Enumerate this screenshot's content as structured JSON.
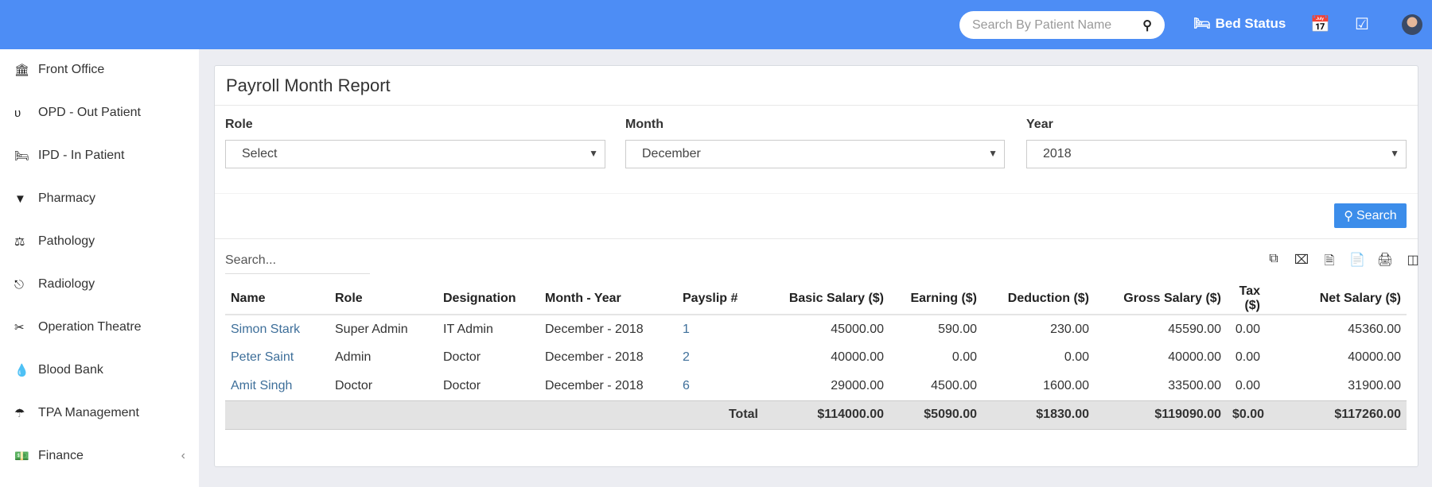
{
  "header": {
    "search_placeholder": "Search By Patient Name",
    "bed_status": "Bed Status"
  },
  "sidebar": {
    "items": [
      {
        "label": "Front Office",
        "icon": "building-icon"
      },
      {
        "label": "OPD - Out Patient",
        "icon": "stethoscope-icon"
      },
      {
        "label": "IPD - In Patient",
        "icon": "bed-icon"
      },
      {
        "label": "Pharmacy",
        "icon": "mortar-pestle-icon"
      },
      {
        "label": "Pathology",
        "icon": "flask-icon"
      },
      {
        "label": "Radiology",
        "icon": "microscope-icon"
      },
      {
        "label": "Operation Theatre",
        "icon": "scissors-icon"
      },
      {
        "label": "Blood Bank",
        "icon": "tint-icon"
      },
      {
        "label": "TPA Management",
        "icon": "umbrella-icon"
      },
      {
        "label": "Finance",
        "icon": "money-icon"
      }
    ]
  },
  "panel": {
    "title": "Payroll Month Report",
    "filters": {
      "role_label": "Role",
      "role_value": "Select",
      "month_label": "Month",
      "month_value": "December",
      "year_label": "Year",
      "year_value": "2018"
    },
    "search_button": "Search",
    "table_search_placeholder": "Search..."
  },
  "table": {
    "headers": [
      "Name",
      "Role",
      "Designation",
      "Month - Year",
      "Payslip #",
      "Basic Salary ($)",
      "Earning ($)",
      "Deduction ($)",
      "Gross Salary ($)",
      "Tax ($)",
      "Net Salary ($)"
    ],
    "rows": [
      [
        "Simon Stark",
        "Super Admin",
        "IT Admin",
        "December - 2018",
        "1",
        "45000.00",
        "590.00",
        "230.00",
        "45590.00",
        "0.00",
        "45360.00"
      ],
      [
        "Peter Saint",
        "Admin",
        "Doctor",
        "December - 2018",
        "2",
        "40000.00",
        "0.00",
        "0.00",
        "40000.00",
        "0.00",
        "40000.00"
      ],
      [
        "Amit Singh",
        "Doctor",
        "Doctor",
        "December - 2018",
        "6",
        "29000.00",
        "4500.00",
        "1600.00",
        "33500.00",
        "0.00",
        "31900.00"
      ]
    ],
    "total": {
      "label": "Total",
      "values": [
        "$114000.00",
        "$5090.00",
        "$1830.00",
        "$119090.00",
        "$0.00",
        "$117260.00"
      ]
    }
  }
}
